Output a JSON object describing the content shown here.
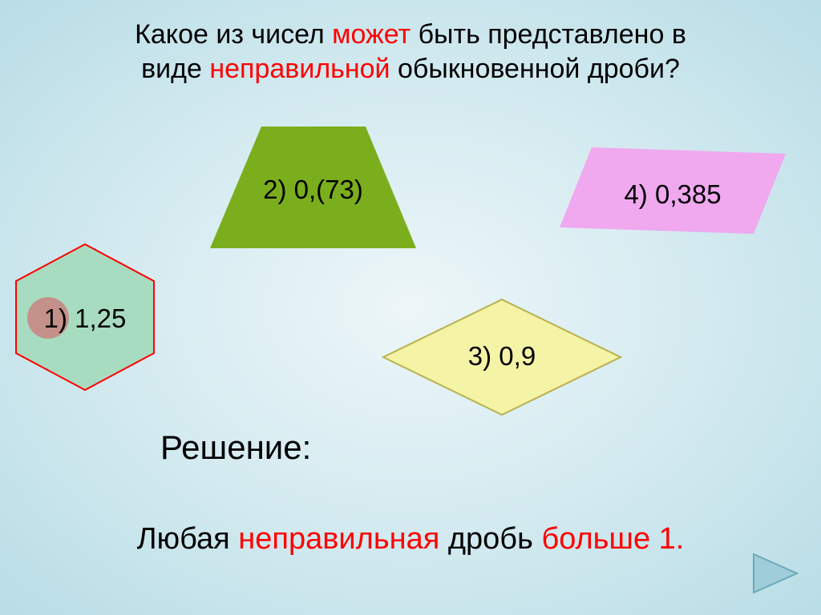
{
  "title": {
    "parts": [
      {
        "text": "Какое из чисел ",
        "hl": false
      },
      {
        "text": "может",
        "hl": true
      },
      {
        "text": " быть представлено в",
        "hl": false
      }
    ],
    "parts2": [
      {
        "text": "виде ",
        "hl": false
      },
      {
        "text": "неправильной",
        "hl": true
      },
      {
        "text": " обыкновенной дроби?",
        "hl": false
      }
    ]
  },
  "options": {
    "opt1": {
      "label": "1) 1,25",
      "shape": "hexagon",
      "fill": "#a7dcc0",
      "stroke": "#ff0000",
      "highlighted": true,
      "highlight_color": "#c4908a"
    },
    "opt2": {
      "label": "2) 0,(73)",
      "shape": "trapezoid",
      "fill": "#7bae1d",
      "stroke": "none"
    },
    "opt3": {
      "label": "3) 0,9",
      "shape": "rhombus",
      "fill": "#f5f3a6",
      "stroke": "#b8b14e"
    },
    "opt4": {
      "label": "4) 0,385",
      "shape": "parallelogram",
      "fill": "#f0a8ef",
      "stroke": "none"
    }
  },
  "solution_label": "Решение:",
  "answer": {
    "parts": [
      {
        "text": "Любая ",
        "hl": false
      },
      {
        "text": "неправильная",
        "hl": true
      },
      {
        "text": " дробь ",
        "hl": false
      },
      {
        "text": "больше 1.",
        "hl": true
      }
    ]
  },
  "nav": {
    "next_arrow_fill": "#9fcdd9",
    "next_arrow_stroke": "#6aa9b8"
  },
  "fonts": {
    "title_size": 34,
    "option_size": 33,
    "solution_size": 42,
    "answer_size": 38
  },
  "background": {
    "inner": "#edf6f8",
    "outer": "#b9dde6"
  }
}
